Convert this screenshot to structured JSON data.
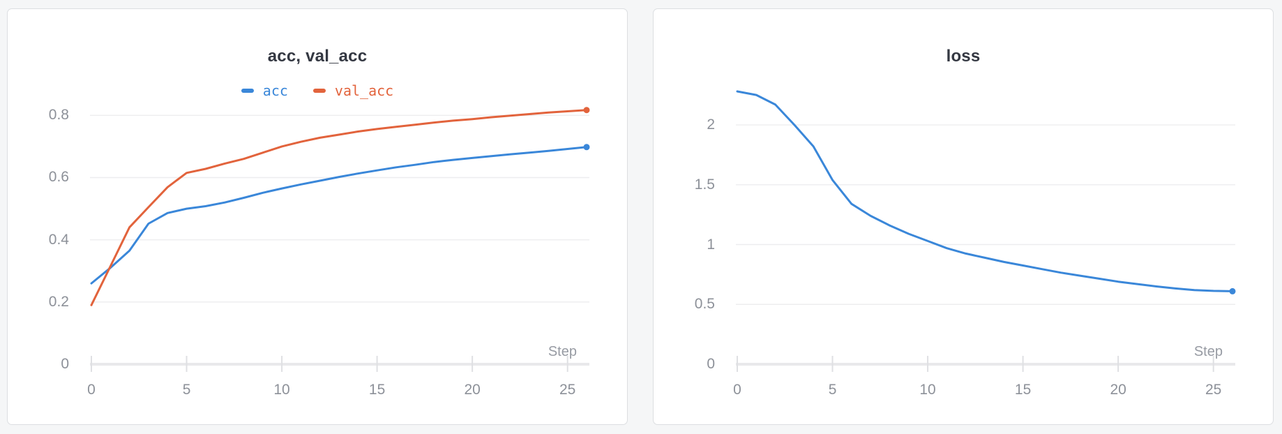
{
  "app": {
    "background_color": "#f5f6f7",
    "panel_background": "#ffffff",
    "accent_blue": "#3a87d9",
    "accent_orange": "#e2633c"
  },
  "chart_data": [
    {
      "type": "line",
      "title": "acc, val_acc",
      "xlabel": "Step",
      "x_axis": {
        "ticks": [
          "0",
          "5",
          "10",
          "15",
          "20",
          "25"
        ],
        "tick_values": [
          0,
          5,
          10,
          15,
          20,
          25
        ],
        "max": 26
      },
      "y_axis": {
        "ticks": [
          "0",
          "0.2",
          "0.4",
          "0.6",
          "0.8"
        ],
        "tick_values": [
          0,
          0.2,
          0.4,
          0.6,
          0.8
        ],
        "max": 0.877
      },
      "grid": "horizontal",
      "legend_position": "top-center",
      "steps": [
        0,
        1,
        2,
        3,
        4,
        5,
        6,
        7,
        8,
        9,
        10,
        11,
        12,
        13,
        14,
        15,
        16,
        17,
        18,
        19,
        20,
        21,
        22,
        23,
        24,
        25,
        26
      ],
      "series": [
        {
          "name": "acc",
          "color": "#3a87d9",
          "end_dot": true,
          "values": [
            0.26,
            0.31,
            0.365,
            0.452,
            0.486,
            0.5,
            0.508,
            0.52,
            0.535,
            0.551,
            0.565,
            0.578,
            0.59,
            0.602,
            0.613,
            0.623,
            0.633,
            0.641,
            0.65,
            0.657,
            0.663,
            0.669,
            0.675,
            0.68,
            0.686,
            0.692,
            0.698
          ]
        },
        {
          "name": "val_acc",
          "color": "#e2633c",
          "end_dot": true,
          "values": [
            0.19,
            0.315,
            0.44,
            0.505,
            0.569,
            0.615,
            0.628,
            0.645,
            0.66,
            0.68,
            0.7,
            0.715,
            0.728,
            0.738,
            0.748,
            0.756,
            0.763,
            0.77,
            0.777,
            0.783,
            0.788,
            0.794,
            0.799,
            0.804,
            0.809,
            0.813,
            0.817
          ]
        }
      ]
    },
    {
      "type": "line",
      "title": "loss",
      "xlabel": "Step",
      "x_axis": {
        "ticks": [
          "0",
          "5",
          "10",
          "15",
          "20",
          "25"
        ],
        "tick_values": [
          0,
          5,
          10,
          15,
          20,
          25
        ],
        "max": 26
      },
      "y_axis": {
        "ticks": [
          "0",
          "0.5",
          "1",
          "1.5",
          "2"
        ],
        "tick_values": [
          0,
          0.5,
          1,
          1.5,
          2
        ],
        "max": 2.28
      },
      "grid": "horizontal",
      "legend_position": "none",
      "steps": [
        0,
        1,
        2,
        3,
        4,
        5,
        6,
        7,
        8,
        9,
        10,
        11,
        12,
        13,
        14,
        15,
        16,
        17,
        18,
        19,
        20,
        21,
        22,
        23,
        24,
        25,
        26
      ],
      "series": [
        {
          "name": "loss",
          "color": "#3a87d9",
          "end_dot": true,
          "values": [
            2.28,
            2.25,
            2.17,
            2.0,
            1.82,
            1.54,
            1.34,
            1.24,
            1.16,
            1.09,
            1.03,
            0.97,
            0.925,
            0.89,
            0.855,
            0.825,
            0.795,
            0.765,
            0.74,
            0.715,
            0.69,
            0.67,
            0.65,
            0.633,
            0.62,
            0.613,
            0.61
          ]
        }
      ]
    }
  ]
}
